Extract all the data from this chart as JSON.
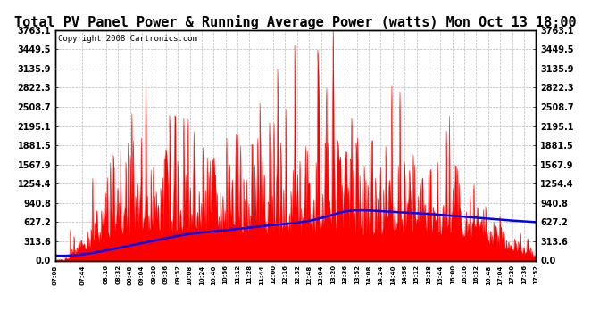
{
  "title": "Total PV Panel Power & Running Average Power (watts) Mon Oct 13 18:00",
  "copyright": "Copyright 2008 Cartronics.com",
  "yticks": [
    0.0,
    313.6,
    627.2,
    940.8,
    1254.4,
    1567.9,
    1881.5,
    2195.1,
    2508.7,
    2822.3,
    3135.9,
    3449.5,
    3763.1
  ],
  "ymax": 3763.1,
  "ymin": 0.0,
  "xtick_labels": [
    "07:08",
    "07:44",
    "08:16",
    "08:32",
    "08:48",
    "09:04",
    "09:20",
    "09:36",
    "09:52",
    "10:08",
    "10:24",
    "10:40",
    "10:56",
    "11:12",
    "11:28",
    "11:44",
    "12:00",
    "12:16",
    "12:32",
    "12:48",
    "13:04",
    "13:20",
    "13:36",
    "13:52",
    "14:08",
    "14:24",
    "14:40",
    "14:56",
    "15:12",
    "15:28",
    "15:44",
    "16:00",
    "16:16",
    "16:32",
    "16:48",
    "17:04",
    "17:20",
    "17:36",
    "17:52"
  ],
  "bg_color": "#ffffff",
  "plot_bg_color": "#ffffff",
  "bar_color": "#ff0000",
  "avg_color": "#0000ff",
  "title_fontsize": 11,
  "copyright_fontsize": 6.5,
  "grid_color": "#bbbbbb"
}
